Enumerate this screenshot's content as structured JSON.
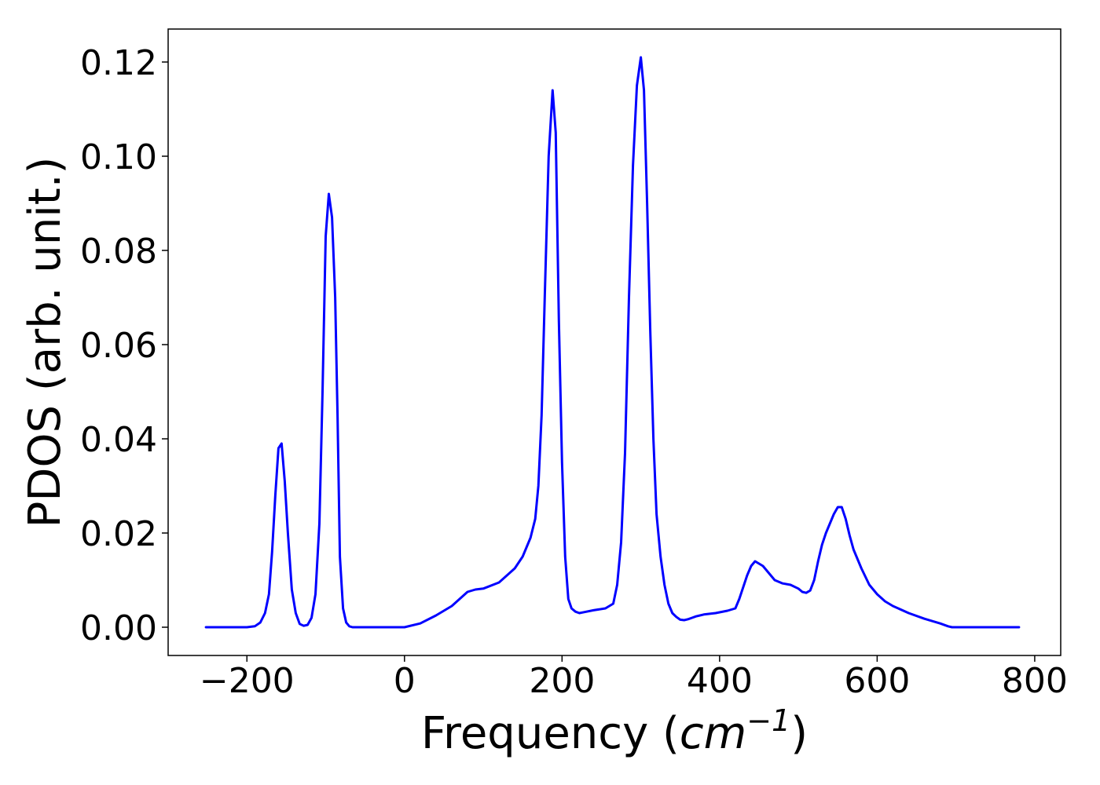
{
  "chart_data": {
    "type": "line",
    "title": "",
    "xlabel_prefix": "Frequency (",
    "xlabel_math_base": "cm",
    "xlabel_math_exp": "−1",
    "xlabel_suffix": ")",
    "ylabel": "PDOS (arb. unit.)",
    "xlim": [
      -300,
      833
    ],
    "ylim": [
      -0.006,
      0.127
    ],
    "xticks": [
      -200,
      0,
      200,
      400,
      600,
      800
    ],
    "xtick_labels": [
      "−200",
      "0",
      "200",
      "400",
      "600",
      "800"
    ],
    "yticks": [
      0.0,
      0.02,
      0.04,
      0.06,
      0.08,
      0.1,
      0.12
    ],
    "ytick_labels": [
      "0.00",
      "0.02",
      "0.04",
      "0.06",
      "0.08",
      "0.10",
      "0.12"
    ],
    "grid": false,
    "legend": false,
    "series": [
      {
        "color": "#0000ff",
        "x": [
          -252,
          -200,
          -190,
          -183,
          -177,
          -172,
          -168,
          -164,
          -160,
          -156,
          -152,
          -148,
          -143,
          -138,
          -133,
          -128,
          -123,
          -118,
          -113,
          -108,
          -104,
          -100,
          -96,
          -92,
          -88,
          -85,
          -82,
          -78,
          -74,
          -70,
          -66,
          -62,
          -58,
          -55,
          -50,
          -40,
          -20,
          0,
          20,
          40,
          60,
          70,
          80,
          90,
          100,
          120,
          140,
          150,
          160,
          166,
          170,
          174,
          178,
          183,
          188,
          192,
          196,
          200,
          204,
          208,
          212,
          217,
          222,
          228,
          240,
          255,
          265,
          270,
          275,
          280,
          285,
          290,
          295,
          300,
          304,
          308,
          312,
          316,
          320,
          325,
          330,
          335,
          340,
          345,
          350,
          355,
          360,
          365,
          370,
          380,
          395,
          410,
          420,
          425,
          430,
          435,
          440,
          445,
          450,
          455,
          460,
          465,
          470,
          480,
          490,
          500,
          505,
          510,
          515,
          520,
          525,
          530,
          535,
          540,
          545,
          550,
          555,
          560,
          565,
          570,
          575,
          580,
          590,
          600,
          610,
          620,
          640,
          660,
          680,
          690,
          695,
          700,
          710,
          720,
          780
        ],
        "y": [
          0.0,
          0.0,
          0.0002,
          0.001,
          0.003,
          0.007,
          0.016,
          0.028,
          0.038,
          0.039,
          0.031,
          0.02,
          0.008,
          0.003,
          0.0007,
          0.0003,
          0.0005,
          0.002,
          0.007,
          0.022,
          0.05,
          0.083,
          0.092,
          0.087,
          0.07,
          0.045,
          0.015,
          0.004,
          0.001,
          0.0002,
          0.0,
          0.0,
          0.0,
          0.0,
          0.0,
          0.0,
          0.0,
          0.0,
          0.0008,
          0.0025,
          0.0045,
          0.006,
          0.0075,
          0.008,
          0.0082,
          0.0095,
          0.0125,
          0.015,
          0.019,
          0.023,
          0.03,
          0.045,
          0.07,
          0.1,
          0.114,
          0.105,
          0.065,
          0.035,
          0.015,
          0.006,
          0.004,
          0.0033,
          0.003,
          0.0032,
          0.0036,
          0.004,
          0.005,
          0.009,
          0.018,
          0.037,
          0.07,
          0.098,
          0.115,
          0.121,
          0.114,
          0.09,
          0.063,
          0.04,
          0.024,
          0.015,
          0.009,
          0.005,
          0.003,
          0.0022,
          0.0016,
          0.0015,
          0.0017,
          0.002,
          0.0023,
          0.0027,
          0.003,
          0.0035,
          0.004,
          0.006,
          0.0085,
          0.011,
          0.013,
          0.014,
          0.0135,
          0.013,
          0.012,
          0.011,
          0.01,
          0.0093,
          0.009,
          0.0082,
          0.0075,
          0.0073,
          0.0078,
          0.01,
          0.014,
          0.0175,
          0.02,
          0.022,
          0.024,
          0.0255,
          0.0255,
          0.023,
          0.0195,
          0.0165,
          0.0145,
          0.0125,
          0.009,
          0.007,
          0.0055,
          0.0045,
          0.003,
          0.0018,
          0.0008,
          0.0002,
          0.0,
          0.0,
          0.0,
          0.0,
          0.0
        ]
      }
    ]
  }
}
